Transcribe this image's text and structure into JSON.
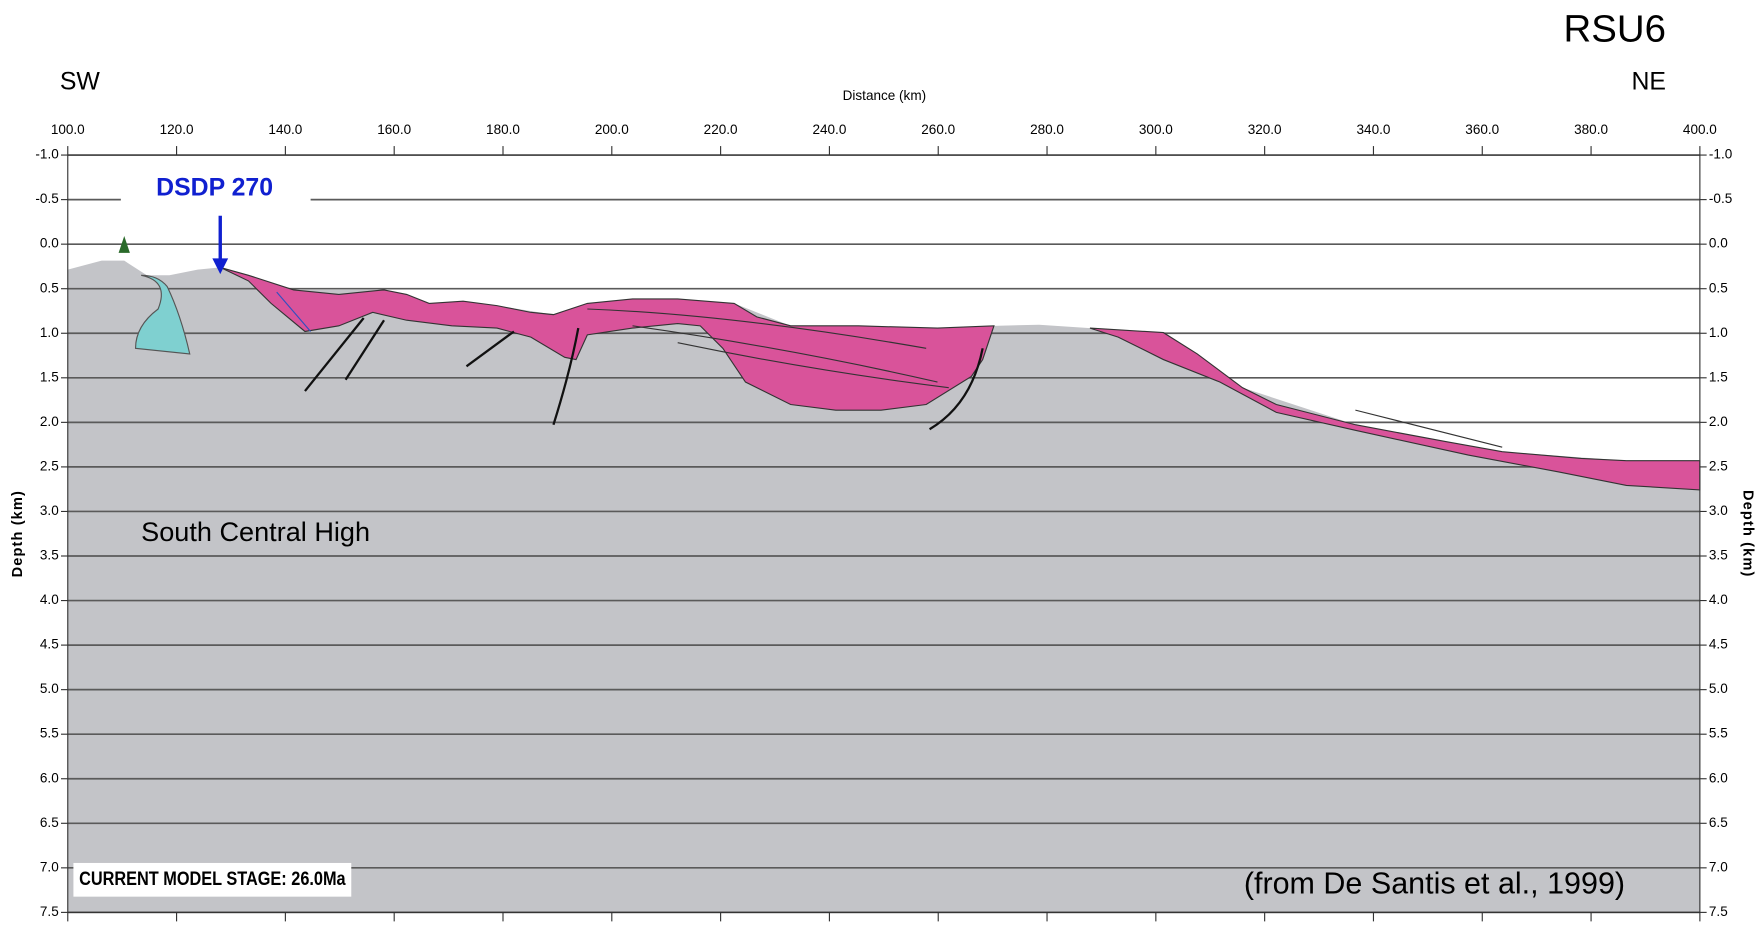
{
  "title": "RSU6",
  "left_label": "SW",
  "right_label": "NE",
  "x_axis": {
    "label": "Distance (km)",
    "lim": [
      100,
      400
    ],
    "ticks": [
      {
        "value": 100,
        "label": "100.0"
      },
      {
        "value": 120,
        "label": "120.0"
      },
      {
        "value": 140,
        "label": "140.0"
      },
      {
        "value": 160,
        "label": "160.0"
      },
      {
        "value": 180,
        "label": "180.0"
      },
      {
        "value": 200,
        "label": "200.0"
      },
      {
        "value": 220,
        "label": "220.0"
      },
      {
        "value": 240,
        "label": "240.0"
      },
      {
        "value": 260,
        "label": "260.0"
      },
      {
        "value": 280,
        "label": "280.0"
      },
      {
        "value": 300,
        "label": "300.0"
      },
      {
        "value": 320,
        "label": "320.0"
      },
      {
        "value": 340,
        "label": "340.0"
      },
      {
        "value": 360,
        "label": "360.0"
      },
      {
        "value": 380,
        "label": "380.0"
      },
      {
        "value": 400,
        "label": "400.0"
      }
    ]
  },
  "y_axis": {
    "label": "Depth (km)",
    "lim": [
      -1,
      7.5
    ],
    "ticks": [
      {
        "value": -1,
        "label": "-1.0"
      },
      -0.5,
      {
        "value": 0,
        "label": "0.0"
      },
      0.5,
      {
        "value": 1,
        "label": "1.0"
      },
      1.5,
      {
        "value": 2,
        "label": "2.0"
      },
      2.5,
      {
        "value": 3,
        "label": "3.0"
      },
      3.5,
      {
        "value": 4,
        "label": "4.0"
      },
      4.5,
      {
        "value": 5,
        "label": "5.0"
      },
      5.5,
      {
        "value": 6,
        "label": "6.0"
      },
      6.5,
      {
        "value": 7,
        "label": "7.0"
      },
      7.5
    ]
  },
  "annotations": {
    "well": "DSDP 270",
    "high": "South Central High",
    "stage": "CURRENT MODEL STAGE: 26.0Ma",
    "source": "(from De Santis et al., 1999)"
  }
}
